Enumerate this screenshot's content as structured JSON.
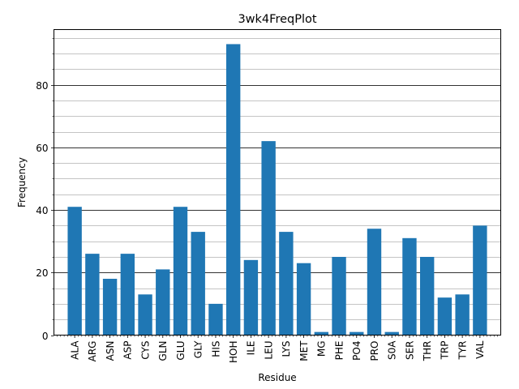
{
  "chart_data": {
    "type": "bar",
    "title": "3wk4FreqPlot",
    "xlabel": "Residue",
    "ylabel": "Frequency",
    "categories": [
      "ALA",
      "ARG",
      "ASN",
      "ASP",
      "CYS",
      "GLN",
      "GLU",
      "GLY",
      "HIS",
      "HOH",
      "ILE",
      "LEU",
      "LYS",
      "MET",
      "MG",
      "PHE",
      "PO4",
      "PRO",
      "S0A",
      "SER",
      "THR",
      "TRP",
      "TYR",
      "VAL"
    ],
    "values": [
      41,
      26,
      18,
      26,
      13,
      21,
      41,
      33,
      10,
      93,
      24,
      62,
      33,
      23,
      1,
      25,
      1,
      34,
      1,
      31,
      25,
      12,
      13,
      35
    ],
    "ylim": [
      0,
      97.65
    ],
    "yticks": [
      0,
      20,
      40,
      60,
      80
    ],
    "ytick_labels": [
      "0",
      "20",
      "40",
      "60",
      "80"
    ],
    "bar_color": "#1f77b4",
    "grid": "y, major and minor",
    "legend": "none"
  }
}
